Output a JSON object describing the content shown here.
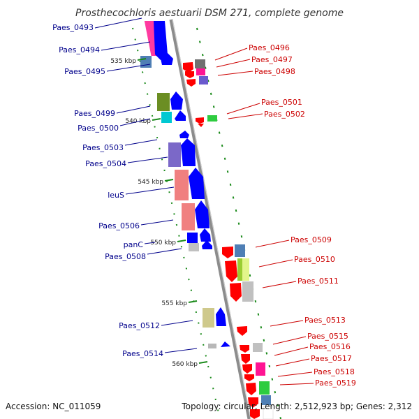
{
  "title": "Prosthecochloris aestuarii DSM 271, complete genome",
  "footer": {
    "accession": "Accession: NC_011059",
    "summary": "Topology: circular; Length: 2,512,923 bp; Genes: 2,312"
  },
  "colors": {
    "backbone": "#8c8c8c",
    "forward_arrow": "#0000ff",
    "reverse_arrow": "#ff0000",
    "leader_left": "#00008b",
    "leader_right": "#cc0000",
    "tick": "#1a8a1a"
  },
  "scale_labels": [
    "535 kbp",
    "540 kbp",
    "545 kbp",
    "550 kbp",
    "555 kbp",
    "560 kbp"
  ],
  "left_labels": [
    {
      "text": "Paes_0493",
      "kb": 531.0
    },
    {
      "text": "Paes_0494",
      "kb": 533.5
    },
    {
      "text": "Paes_0495",
      "kb": 535.5
    },
    {
      "text": "Paes_0499",
      "kb": 539.2
    },
    {
      "text": "Paes_0500",
      "kb": 540.4
    },
    {
      "text": "Paes_0503",
      "kb": 542.5
    },
    {
      "text": "Paes_0504",
      "kb": 543.8
    },
    {
      "text": "leuS",
      "kb": 546.2
    },
    {
      "text": "Paes_0506",
      "kb": 548.6
    },
    {
      "text": "panC",
      "kb": 550.2
    },
    {
      "text": "Paes_0508",
      "kb": 551.0
    },
    {
      "text": "Paes_0512",
      "kb": 556.4
    },
    {
      "text": "Paes_0514",
      "kb": 558.6
    }
  ],
  "right_labels": [
    {
      "text": "Paes_0496",
      "kb": 534.8
    },
    {
      "text": "Paes_0497",
      "kb": 535.7
    },
    {
      "text": "Paes_0498",
      "kb": 536.5
    },
    {
      "text": "Paes_0501",
      "kb": 539.5
    },
    {
      "text": "Paes_0502",
      "kb": 540.3
    },
    {
      "text": "Paes_0509",
      "kb": 550.7
    },
    {
      "text": "Paes_0510",
      "kb": 552.2
    },
    {
      "text": "Paes_0511",
      "kb": 553.7
    },
    {
      "text": "Paes_0513",
      "kb": 557.0
    },
    {
      "text": "Paes_0515",
      "kb": 558.3
    },
    {
      "text": "Paes_0516",
      "kb": 559.1
    },
    {
      "text": "Paes_0517",
      "kb": 559.9
    },
    {
      "text": "Paes_0518",
      "kb": 560.7
    },
    {
      "text": "Paes_0519",
      "kb": 561.5
    }
  ]
}
